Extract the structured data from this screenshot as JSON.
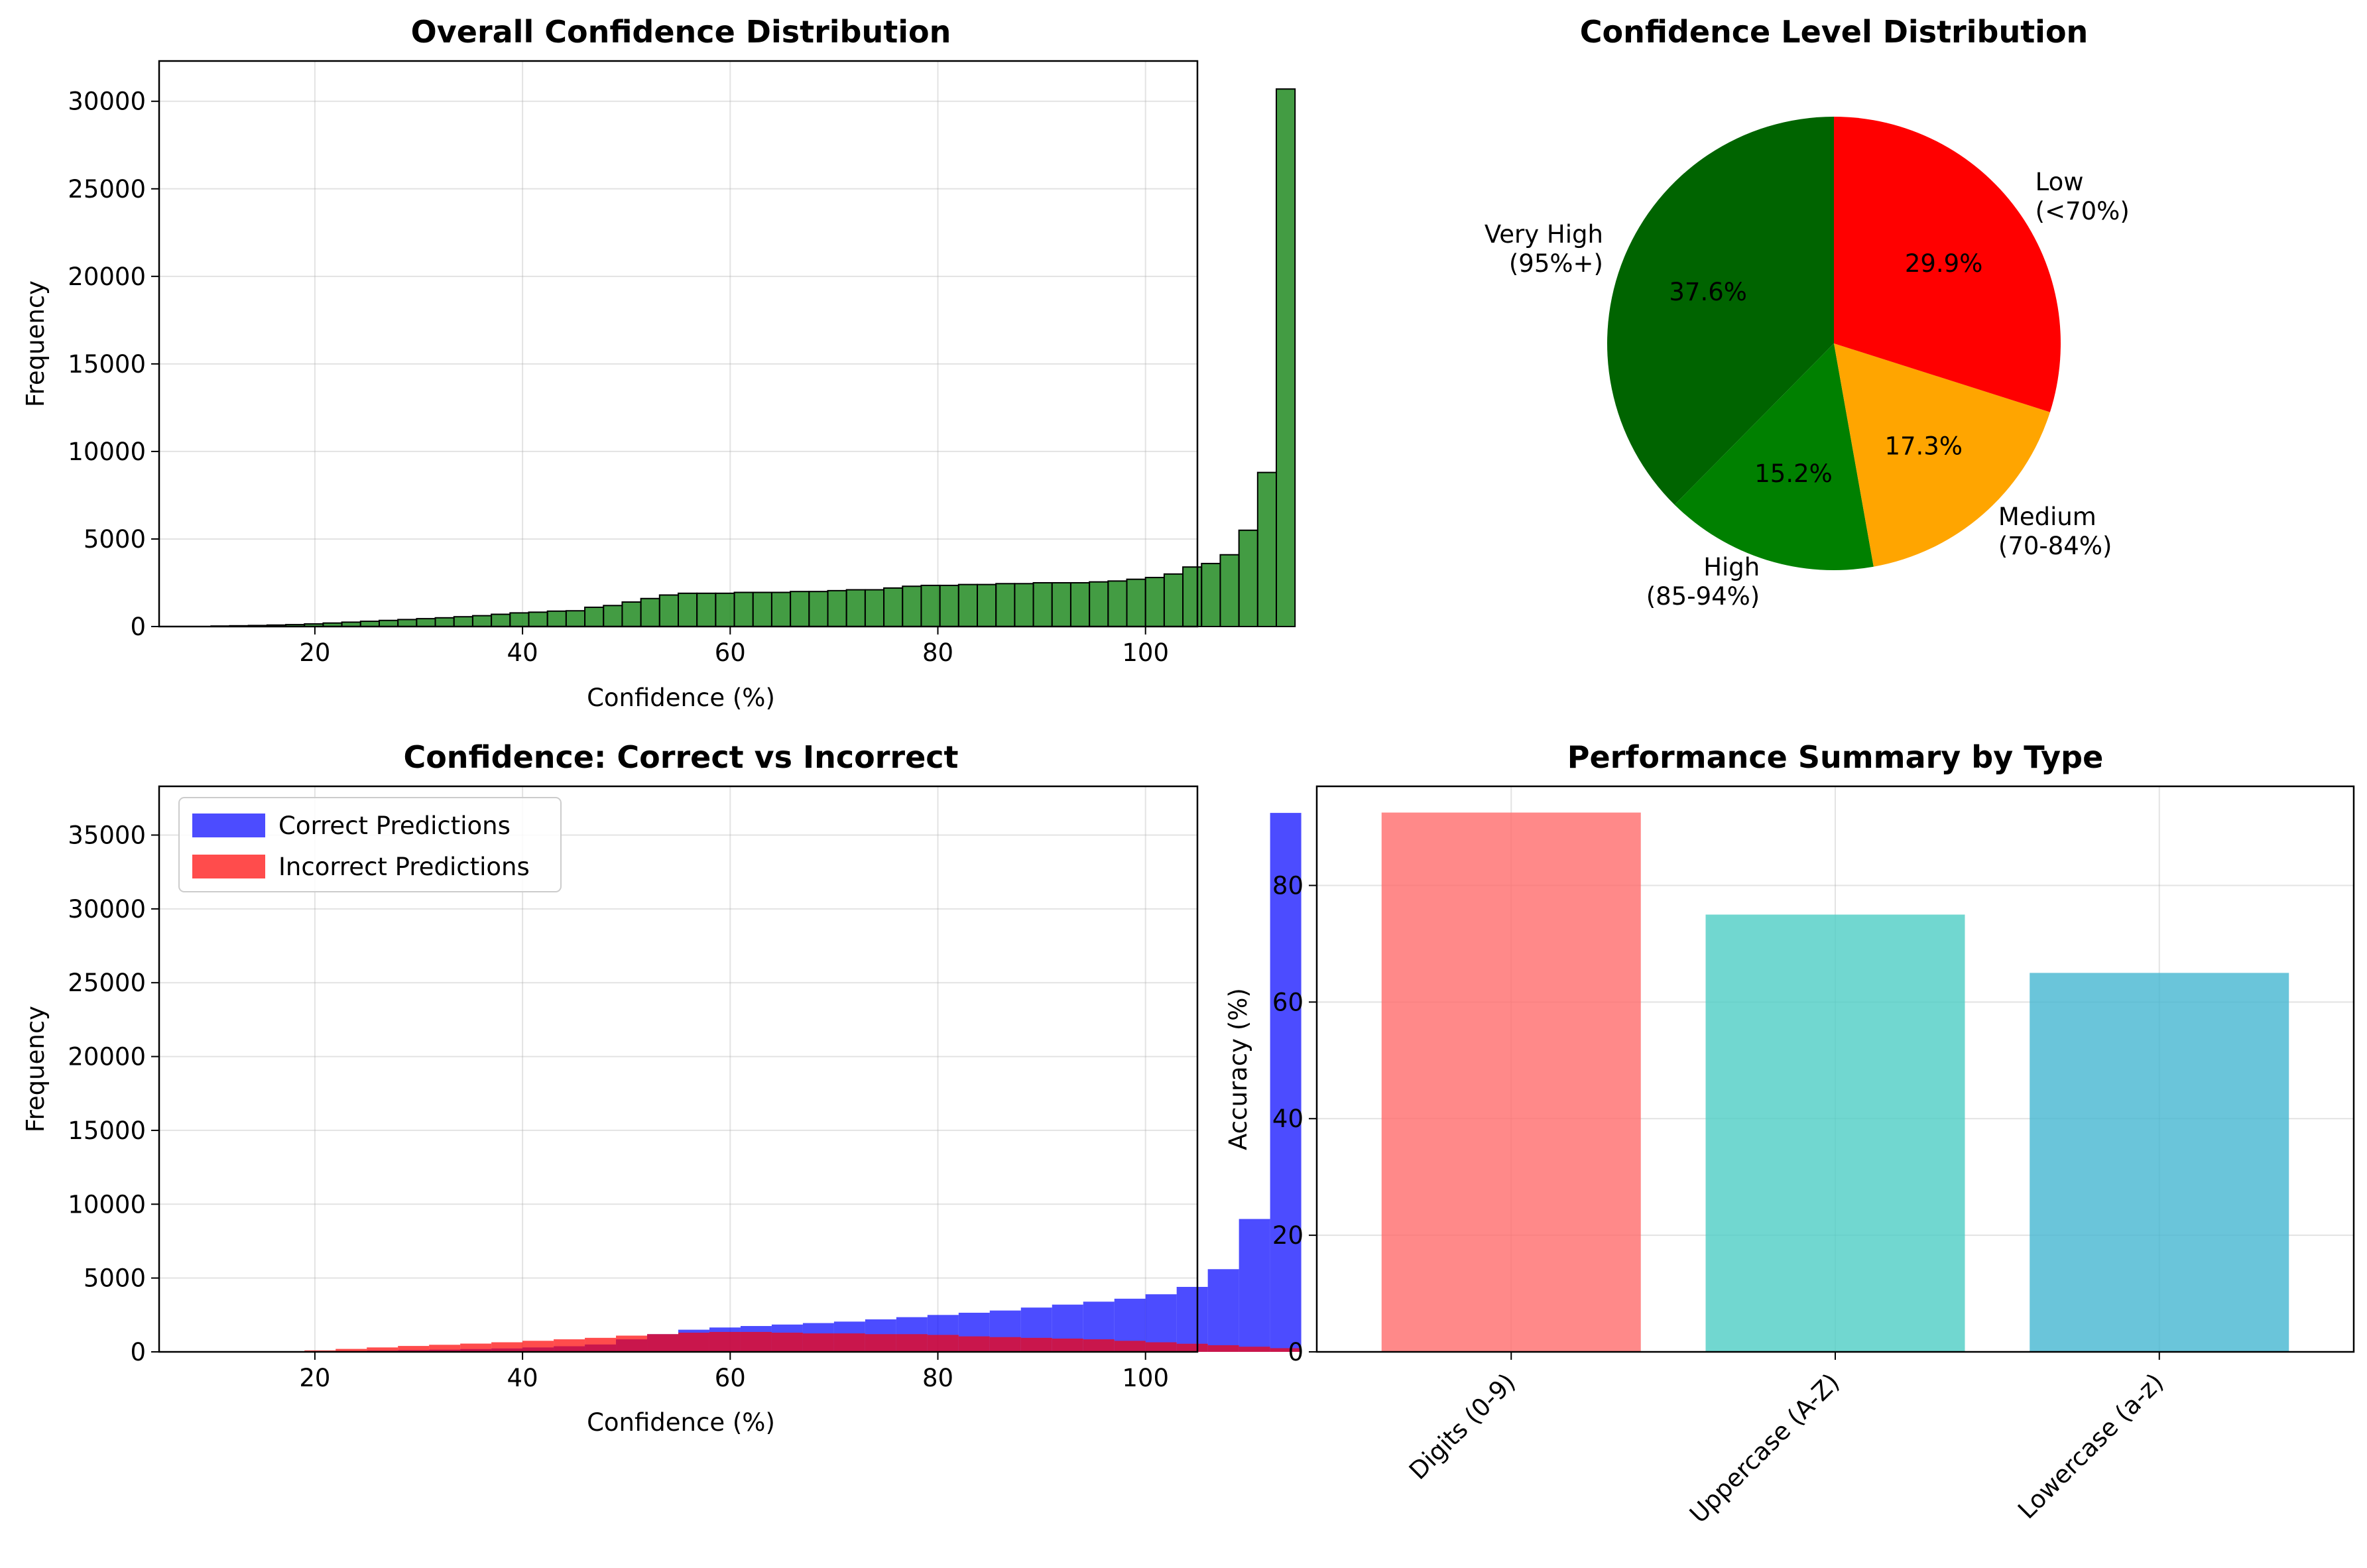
{
  "chart_data": [
    {
      "id": "overall",
      "type": "bar",
      "title": "Overall Confidence Distribution",
      "xlabel": "Confidence (%)",
      "ylabel": "Frequency",
      "xlim": [
        5,
        105
      ],
      "ylim": [
        0,
        32300
      ],
      "xticks": [
        "20",
        "40",
        "60",
        "80",
        "100"
      ],
      "yticks": [
        "0",
        "5000",
        "10000",
        "15000",
        "20000",
        "25000",
        "30000"
      ],
      "grid": true,
      "color": "#228b22",
      "bin_start": 10,
      "bin_width": 1.8,
      "values": [
        30,
        45,
        60,
        85,
        110,
        150,
        200,
        250,
        300,
        350,
        400,
        450,
        500,
        560,
        620,
        700,
        780,
        820,
        880,
        900,
        1100,
        1200,
        1400,
        1600,
        1800,
        1900,
        1900,
        1900,
        1950,
        1950,
        1950,
        2000,
        2000,
        2050,
        2100,
        2100,
        2200,
        2300,
        2350,
        2350,
        2400,
        2400,
        2450,
        2450,
        2500,
        2500,
        2500,
        2550,
        2600,
        2700,
        2800,
        3000,
        3400,
        3600,
        4100,
        5500,
        8800,
        30700
      ]
    },
    {
      "id": "levels",
      "type": "pie",
      "title": "Confidence Level Distribution",
      "slices": [
        {
          "label": "Very High\n(95%+)",
          "value": 37.6,
          "pct": "37.6%",
          "color": "#006400"
        },
        {
          "label": "High\n(85-94%)",
          "value": 15.2,
          "pct": "15.2%",
          "color": "#008000"
        },
        {
          "label": "Medium\n(70-84%)",
          "value": 17.3,
          "pct": "17.3%",
          "color": "#ffa500"
        },
        {
          "label": "Low\n(<70%)",
          "value": 29.9,
          "pct": "29.9%",
          "color": "#ff0000"
        }
      ]
    },
    {
      "id": "correct_vs_incorrect",
      "type": "bar",
      "title": "Confidence: Correct vs Incorrect",
      "xlabel": "Confidence (%)",
      "ylabel": "Frequency",
      "xlim": [
        5,
        105
      ],
      "ylim": [
        0,
        38300
      ],
      "xticks": [
        "20",
        "40",
        "60",
        "80",
        "100"
      ],
      "yticks": [
        "0",
        "5000",
        "10000",
        "15000",
        "20000",
        "25000",
        "30000",
        "35000"
      ],
      "grid": true,
      "legend": "upper left",
      "bin_start": 10,
      "bin_width": 3,
      "series": [
        {
          "name": "Correct Predictions",
          "color": "#0000ff",
          "values": [
            0,
            10,
            20,
            40,
            60,
            90,
            120,
            150,
            190,
            230,
            300,
            380,
            500,
            850,
            1200,
            1500,
            1650,
            1750,
            1850,
            1950,
            2050,
            2200,
            2350,
            2500,
            2650,
            2800,
            3000,
            3200,
            3400,
            3600,
            3900,
            4400,
            5600,
            9000,
            36500
          ]
        },
        {
          "name": "Incorrect Predictions",
          "color": "#ff0000",
          "values": [
            0,
            0,
            0,
            100,
            200,
            300,
            400,
            480,
            560,
            650,
            750,
            850,
            950,
            1100,
            1200,
            1300,
            1350,
            1350,
            1300,
            1250,
            1250,
            1200,
            1200,
            1150,
            1050,
            1000,
            950,
            900,
            850,
            750,
            650,
            550,
            450,
            350,
            250
          ]
        }
      ]
    },
    {
      "id": "performance",
      "type": "bar",
      "title": "Performance Summary by Type",
      "xlabel": "",
      "ylabel": "Accuracy (%)",
      "ylim": [
        0,
        97
      ],
      "yticks": [
        "0",
        "20",
        "40",
        "60",
        "80"
      ],
      "grid": true,
      "categories": [
        "Digits (0-9)",
        "Uppercase (A-Z)",
        "Lowercase (a-z)"
      ],
      "values": [
        92.5,
        75.0,
        65.0
      ],
      "colors": [
        "#ff6b6b",
        "#4ecdc4",
        "#45b7d1"
      ]
    }
  ]
}
